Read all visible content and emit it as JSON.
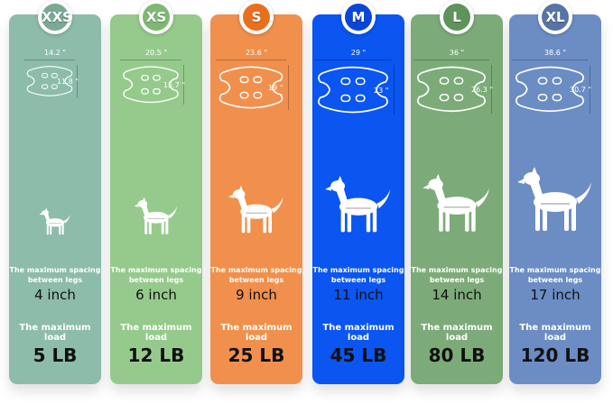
{
  "sizes": [
    {
      "label": "XXS",
      "width": "14.2 \"",
      "height": "11.8 \"",
      "spacing_label": "The maximum spacing between legs",
      "spacing": "4 inch",
      "load_label": "The maximum load",
      "load": "5 LB",
      "color": "#8dbcab",
      "badge_color": "#7aa994"
    },
    {
      "label": "XS",
      "width": "20.5 \"",
      "height": "15.7 \"",
      "spacing_label": "The maximum spacing between legs",
      "spacing": "6 inch",
      "load_label": "The maximum load",
      "load": "12 LB",
      "color": "#96ca8c",
      "badge_color": "#7fb873"
    },
    {
      "label": "S",
      "width": "23.6 \"",
      "height": "19 \"",
      "spacing_label": "The maximum spacing between legs",
      "spacing": "9 inch",
      "load_label": "The maximum load",
      "load": "25 LB",
      "color": "#f0904c",
      "badge_color": "#e96f1f"
    },
    {
      "label": "M",
      "width": "29 \"",
      "height": "23 \"",
      "spacing_label": "The maximum spacing between legs",
      "spacing": "11 inch",
      "load_label": "The maximum load",
      "load": "45 LB",
      "color": "#0b55f0",
      "badge_color": "#0b45d8"
    },
    {
      "label": "L",
      "width": "36 \"",
      "height": "26.3 \"",
      "spacing_label": "The maximum spacing between legs",
      "spacing": "14 inch",
      "load_label": "The maximum load",
      "load": "80 LB",
      "color": "#7cab79",
      "badge_color": "#5e935a"
    },
    {
      "label": "XL",
      "width": "38.6 \"",
      "height": "30.7 \"",
      "spacing_label": "The maximum spacing between legs",
      "spacing": "17 inch",
      "load_label": "The maximum load",
      "load": "120 LB",
      "color": "#6b8dc4",
      "badge_color": "#5874a6"
    }
  ]
}
